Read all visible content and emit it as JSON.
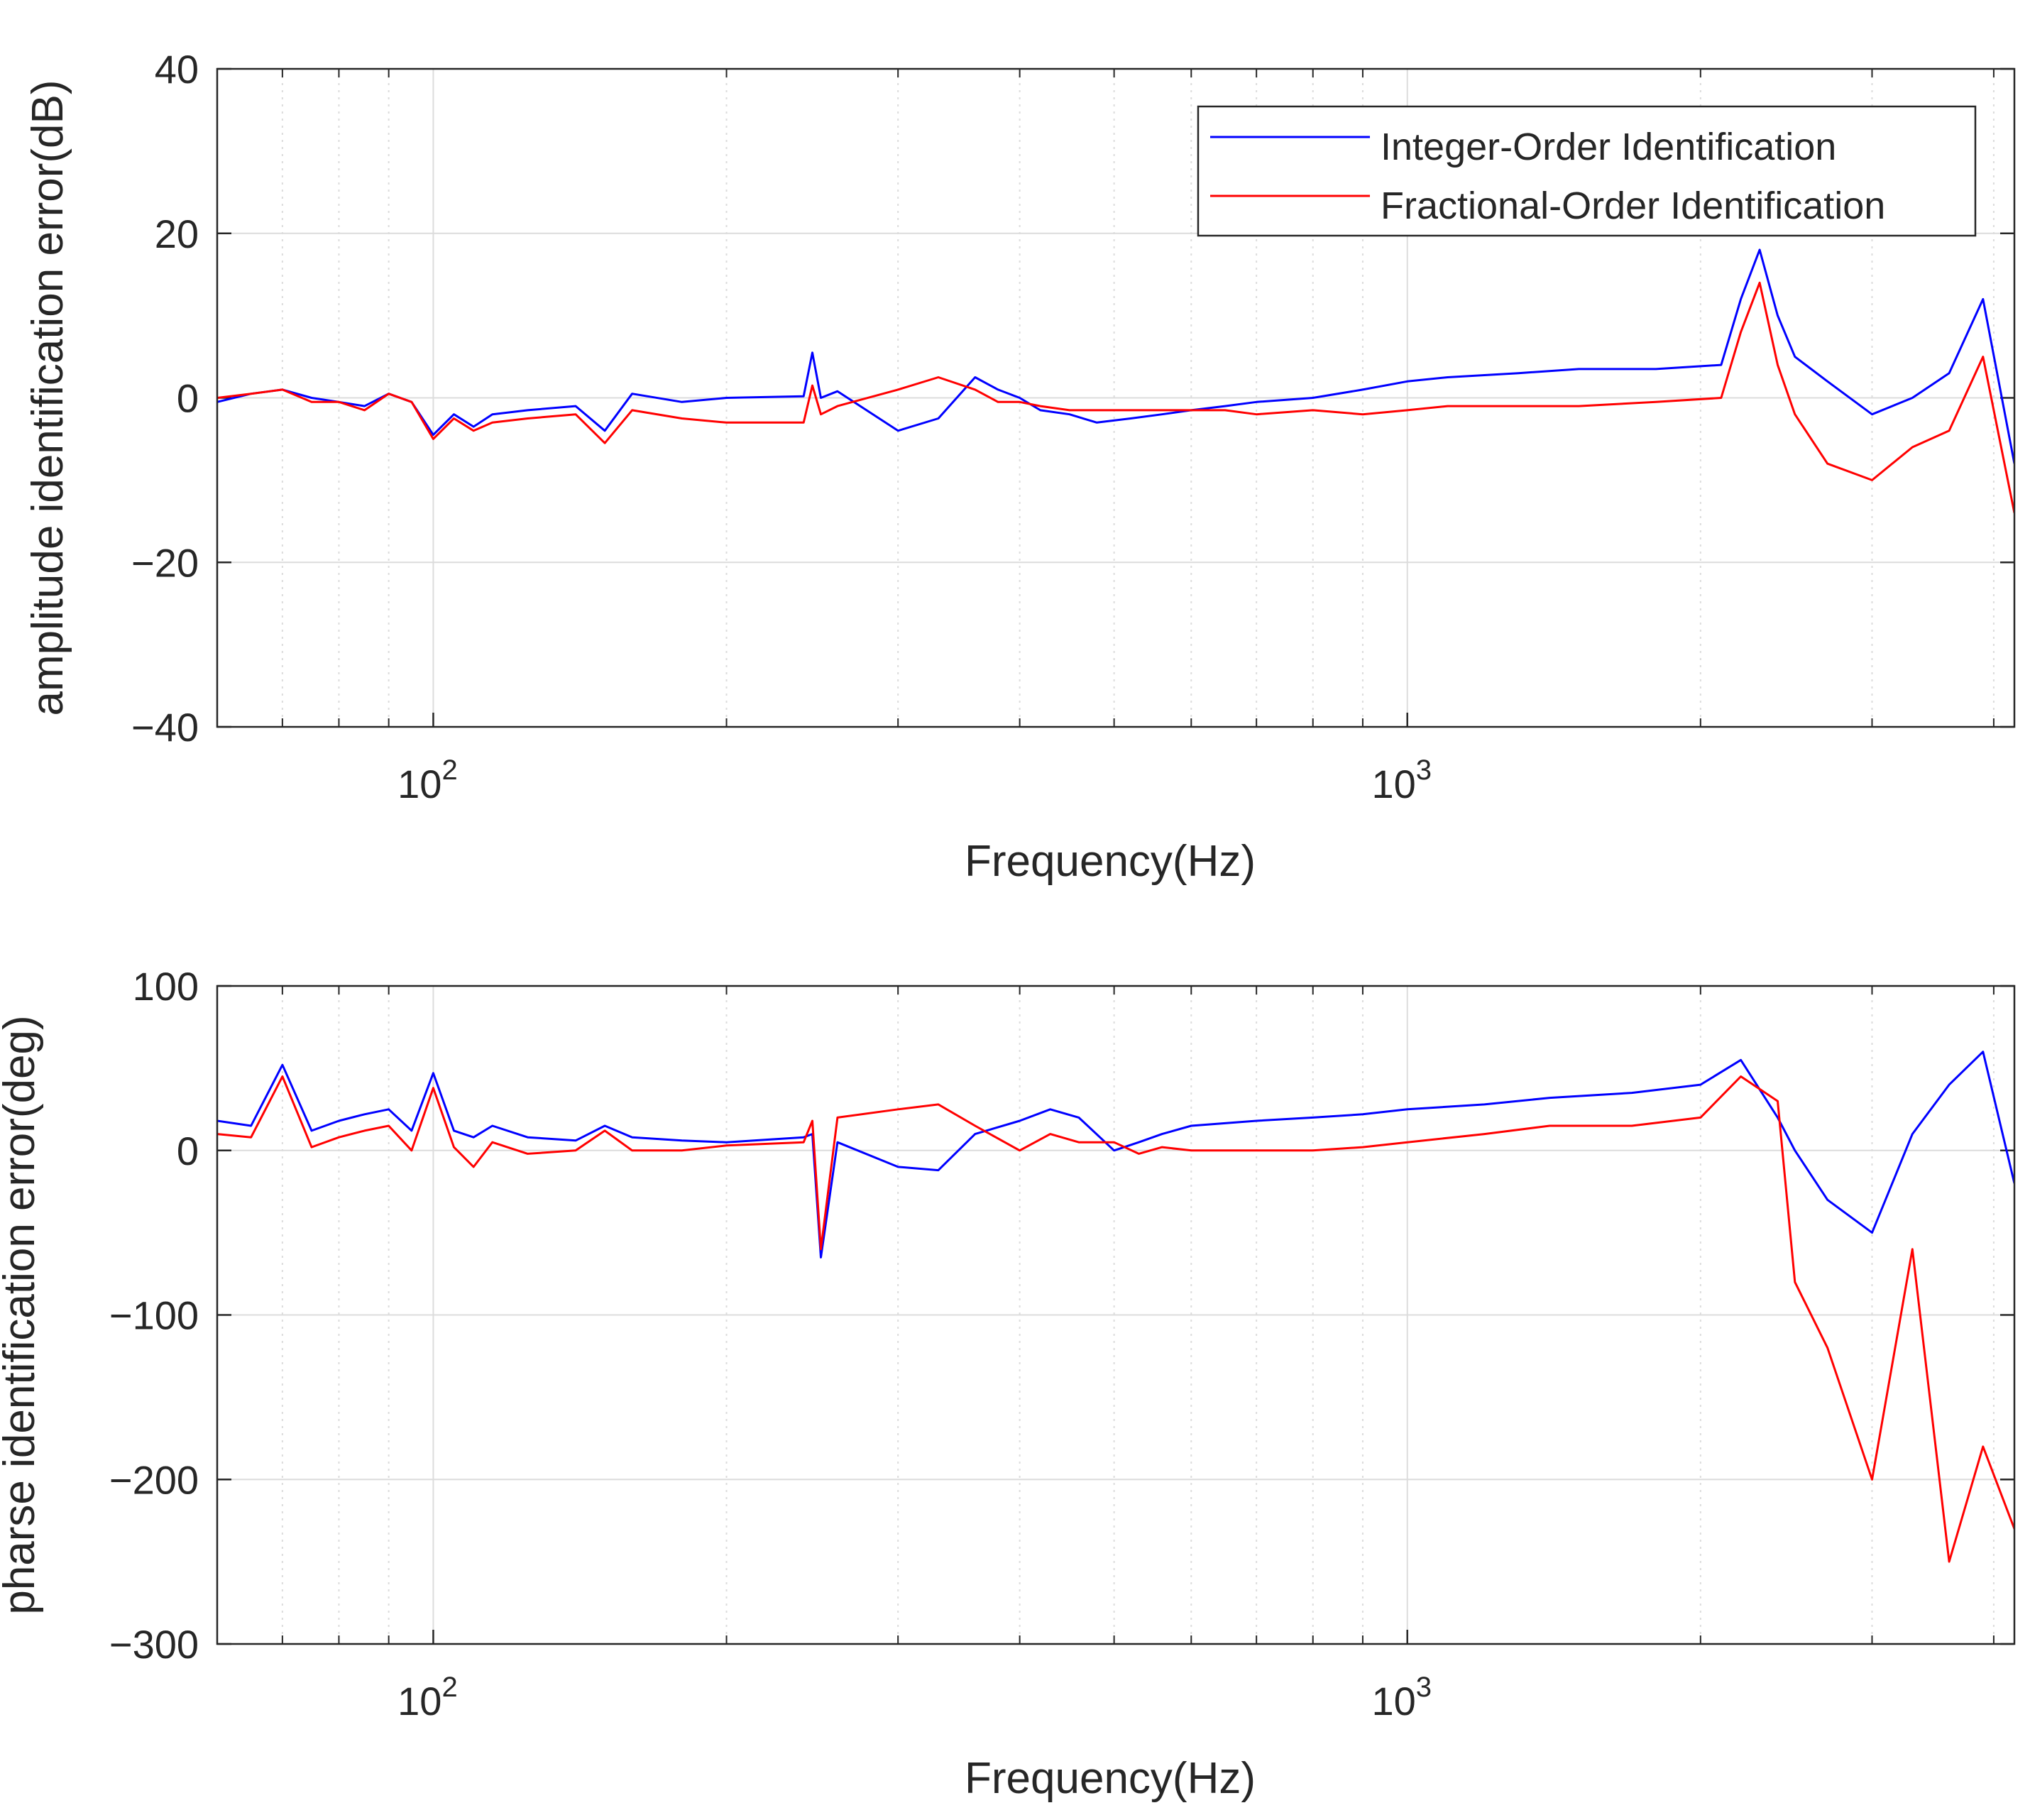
{
  "colors": {
    "integer": "#0000ff",
    "fractional": "#ff0000",
    "grid": "#dcdcdc",
    "axis": "#262626",
    "background": "#ffffff"
  },
  "legend": {
    "integer_label": "Integer-Order Identification",
    "fractional_label": "Fractional-Order Identification",
    "placement": "top-right of upper plot"
  },
  "chart_data": [
    {
      "type": "line",
      "title": "",
      "xlabel": "Frequency(Hz)",
      "ylabel": "amplitude identification error(dB)",
      "xscale": "log",
      "xlim": [
        60,
        4200
      ],
      "ylim": [
        -40,
        40
      ],
      "yticks": [
        40,
        20,
        0,
        -20,
        -40
      ],
      "ytick_labels": [
        "40",
        "20",
        "0",
        "−20",
        "−40"
      ],
      "xticks": [
        100,
        1000
      ],
      "xtick_labels": [
        {
          "base": "10",
          "exp": "2"
        },
        {
          "base": "10",
          "exp": "3"
        }
      ],
      "grid": true,
      "series": [
        {
          "name": "Integer-Order Identification",
          "color_key": "integer",
          "x": [
            60,
            65,
            70,
            75,
            80,
            85,
            90,
            95,
            100,
            105,
            110,
            115,
            125,
            140,
            150,
            160,
            180,
            200,
            240,
            245,
            250,
            260,
            300,
            330,
            360,
            380,
            400,
            420,
            450,
            480,
            520,
            560,
            600,
            650,
            700,
            800,
            900,
            1000,
            1100,
            1300,
            1500,
            1800,
            2100,
            2200,
            2300,
            2400,
            2500,
            2700,
            3000,
            3300,
            3600,
            3900,
            4200
          ],
          "y": [
            -0.5,
            0.5,
            1.0,
            0.0,
            -0.5,
            -1.0,
            0.5,
            -0.5,
            -4.5,
            -2.0,
            -3.5,
            -2.0,
            -1.5,
            -1.0,
            -4.0,
            0.5,
            -0.5,
            0.0,
            0.2,
            5.5,
            0.0,
            0.8,
            -4.0,
            -2.5,
            2.5,
            1.0,
            0.0,
            -1.5,
            -2.0,
            -3.0,
            -2.5,
            -2.0,
            -1.5,
            -1.0,
            -0.5,
            0.0,
            1.0,
            2.0,
            2.5,
            3.0,
            3.5,
            3.5,
            4.0,
            12.0,
            18.0,
            10.0,
            5.0,
            2.0,
            -2.0,
            0.0,
            3.0,
            12.0,
            -8.0
          ]
        },
        {
          "name": "Fractional-Order Identification",
          "color_key": "fractional",
          "x": [
            60,
            65,
            70,
            75,
            80,
            85,
            90,
            95,
            100,
            105,
            110,
            115,
            125,
            140,
            150,
            160,
            180,
            200,
            240,
            245,
            250,
            260,
            300,
            330,
            360,
            380,
            400,
            420,
            450,
            480,
            520,
            560,
            600,
            650,
            700,
            800,
            900,
            1000,
            1100,
            1300,
            1500,
            1800,
            2100,
            2200,
            2300,
            2400,
            2500,
            2700,
            3000,
            3300,
            3600,
            3900,
            4200
          ],
          "y": [
            0.0,
            0.5,
            1.0,
            -0.5,
            -0.5,
            -1.5,
            0.5,
            -0.5,
            -5.0,
            -2.5,
            -4.0,
            -3.0,
            -2.5,
            -2.0,
            -5.5,
            -1.5,
            -2.5,
            -3.0,
            -3.0,
            1.5,
            -2.0,
            -1.0,
            1.0,
            2.5,
            1.0,
            -0.5,
            -0.5,
            -1.0,
            -1.5,
            -1.5,
            -1.5,
            -1.5,
            -1.5,
            -1.5,
            -2.0,
            -1.5,
            -2.0,
            -1.5,
            -1.0,
            -1.0,
            -1.0,
            -0.5,
            0.0,
            8.0,
            14.0,
            4.0,
            -2.0,
            -8.0,
            -10.0,
            -6.0,
            -4.0,
            5.0,
            -14.0
          ]
        }
      ]
    },
    {
      "type": "line",
      "title": "",
      "xlabel": "Frequency(Hz)",
      "ylabel": "pharse identification error(deg)",
      "xscale": "log",
      "xlim": [
        60,
        4200
      ],
      "ylim": [
        -300,
        100
      ],
      "yticks": [
        100,
        0,
        -100,
        -200,
        -300
      ],
      "ytick_labels": [
        "100",
        "0",
        "−100",
        "−200",
        "−300"
      ],
      "xticks": [
        100,
        1000
      ],
      "xtick_labels": [
        {
          "base": "10",
          "exp": "2"
        },
        {
          "base": "10",
          "exp": "3"
        }
      ],
      "grid": true,
      "series": [
        {
          "name": "Integer-Order Identification",
          "color_key": "integer",
          "x": [
            60,
            65,
            70,
            75,
            80,
            85,
            90,
            95,
            100,
            105,
            110,
            115,
            125,
            140,
            150,
            160,
            180,
            200,
            240,
            245,
            250,
            260,
            300,
            330,
            360,
            400,
            430,
            460,
            500,
            530,
            560,
            600,
            700,
            800,
            900,
            1000,
            1200,
            1400,
            1700,
            2000,
            2200,
            2400,
            2500,
            2700,
            3000,
            3300,
            3600,
            3900,
            4200
          ],
          "y": [
            18,
            15,
            52,
            12,
            18,
            22,
            25,
            12,
            47,
            12,
            8,
            15,
            8,
            6,
            15,
            8,
            6,
            5,
            8,
            10,
            -65,
            5,
            -10,
            -12,
            10,
            18,
            25,
            20,
            0,
            5,
            10,
            15,
            18,
            20,
            22,
            25,
            28,
            32,
            35,
            40,
            55,
            20,
            0,
            -30,
            -50,
            10,
            40,
            60,
            -20
          ]
        },
        {
          "name": "Fractional-Order Identification",
          "color_key": "fractional",
          "x": [
            60,
            65,
            70,
            75,
            80,
            85,
            90,
            95,
            100,
            105,
            110,
            115,
            125,
            140,
            150,
            160,
            180,
            200,
            240,
            245,
            250,
            260,
            300,
            330,
            360,
            400,
            430,
            460,
            500,
            530,
            560,
            600,
            700,
            800,
            900,
            1000,
            1200,
            1400,
            1700,
            2000,
            2200,
            2400,
            2500,
            2700,
            3000,
            3300,
            3600,
            3900,
            4200
          ],
          "y": [
            10,
            8,
            45,
            2,
            8,
            12,
            15,
            0,
            38,
            2,
            -10,
            5,
            -2,
            0,
            12,
            0,
            0,
            3,
            5,
            18,
            -60,
            20,
            25,
            28,
            15,
            0,
            10,
            5,
            5,
            -2,
            2,
            0,
            0,
            0,
            2,
            5,
            10,
            15,
            15,
            20,
            45,
            30,
            -80,
            -120,
            -200,
            -60,
            -250,
            -180,
            -230
          ]
        }
      ]
    }
  ]
}
